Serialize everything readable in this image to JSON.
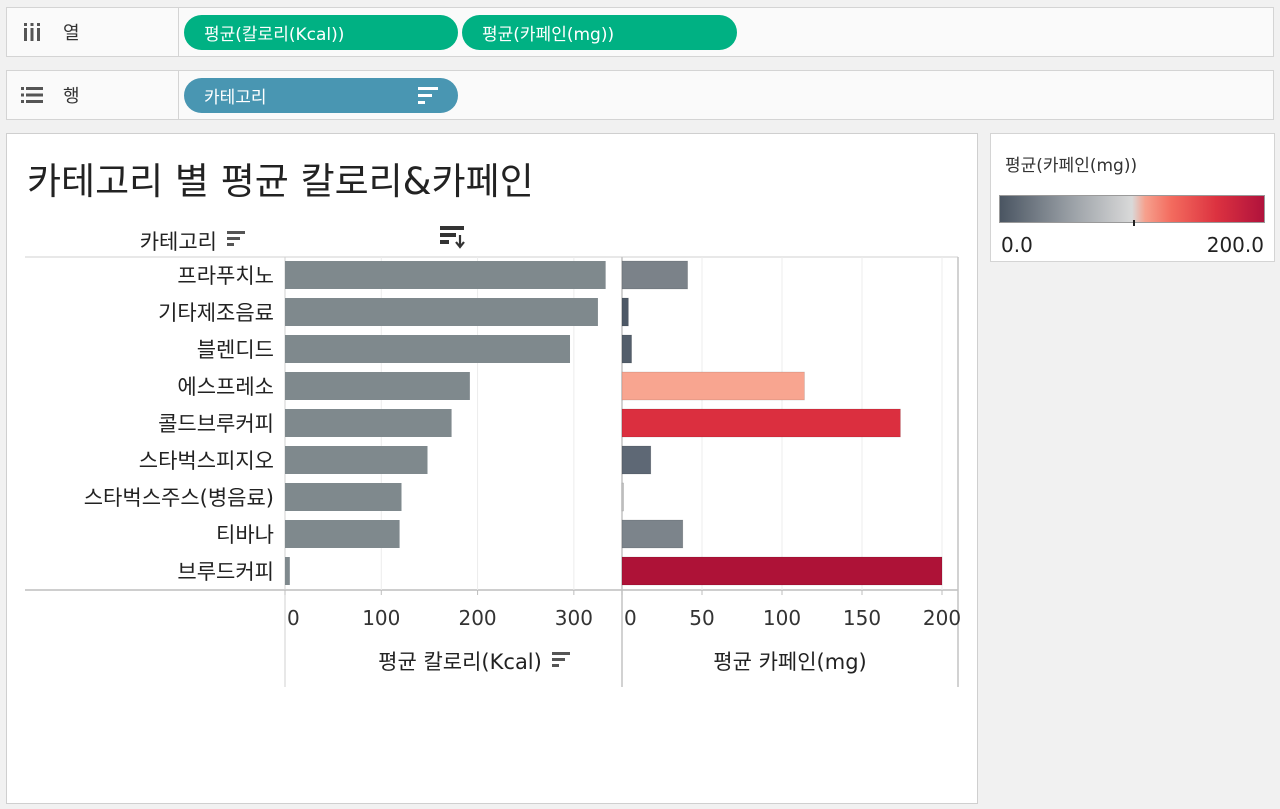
{
  "shelves": {
    "columns": {
      "label": "열",
      "pills": [
        "평균(칼로리(Kcal))",
        "평균(카페인(mg))"
      ]
    },
    "rows": {
      "label": "행",
      "pills": [
        "카테고리"
      ]
    }
  },
  "legend": {
    "title": "평균(카페인(mg))",
    "min_label": "0.0",
    "max_label": "200.0",
    "colors": [
      "#4a5562",
      "#d9d9d9",
      "#f6a08d",
      "#dc3240",
      "#b0123c"
    ]
  },
  "chart_data": {
    "type": "bar",
    "orientation": "horizontal",
    "title": "카테고리 별 평균 칼로리&카페인",
    "row_header": "카테고리",
    "categories": [
      "프라푸치노",
      "기타제조음료",
      "블렌디드",
      "에스프레소",
      "콜드브루커피",
      "스타벅스피지오",
      "스타벅스주스(병음료)",
      "티바나",
      "브루드커피"
    ],
    "series": [
      {
        "name": "평균 칼로리(Kcal)",
        "values": [
          333,
          325,
          296,
          192,
          173,
          148,
          121,
          119,
          5
        ],
        "xlim": [
          0,
          350
        ],
        "ticks": [
          0,
          100,
          200,
          300
        ],
        "color": "#7f898d"
      },
      {
        "name": "평균 카페인(mg)",
        "values": [
          41,
          4,
          6,
          114,
          174,
          18,
          1,
          38,
          200
        ],
        "xlim": [
          0,
          210
        ],
        "ticks": [
          0,
          50,
          100,
          150,
          200
        ],
        "colors": [
          "#7b8289",
          "#4d5866",
          "#535e6b",
          "#f8a590",
          "#db2f3f",
          "#5e6875",
          "#c8c8c8",
          "#7c848b",
          "#ae1237"
        ]
      }
    ],
    "grid": true,
    "legend_position": "right"
  }
}
